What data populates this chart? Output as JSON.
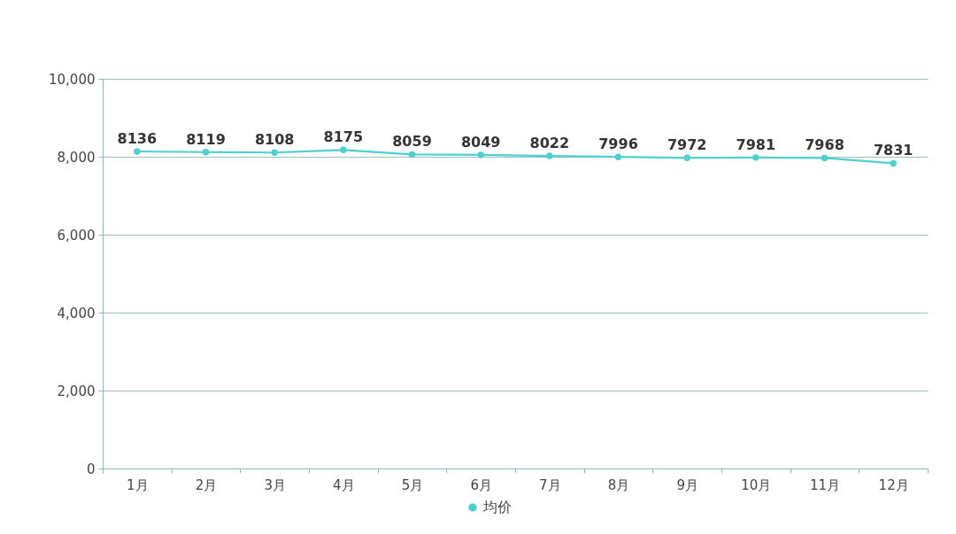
{
  "chart_data": {
    "type": "line",
    "categories": [
      "1月",
      "2月",
      "3月",
      "4月",
      "5月",
      "6月",
      "7月",
      "8月",
      "9月",
      "10月",
      "11月",
      "12月"
    ],
    "series": [
      {
        "name": "均价",
        "color": "#4ecfd0",
        "values": [
          8136,
          8119,
          8108,
          8175,
          8059,
          8049,
          8022,
          7996,
          7972,
          7981,
          7968,
          7831
        ]
      }
    ],
    "ylim": [
      0,
      10000
    ],
    "yticks": [
      0,
      {
        "value": 2000,
        "label": "2,000"
      },
      {
        "value": 4000,
        "label": "4,000"
      },
      {
        "value": 6000,
        "label": "6,000"
      },
      {
        "value": 8000,
        "label": "8,000"
      },
      {
        "value": 10000,
        "label": "10,000"
      }
    ],
    "grid": "y",
    "legend": "bottom",
    "marker": "circle",
    "data_labels": true
  }
}
